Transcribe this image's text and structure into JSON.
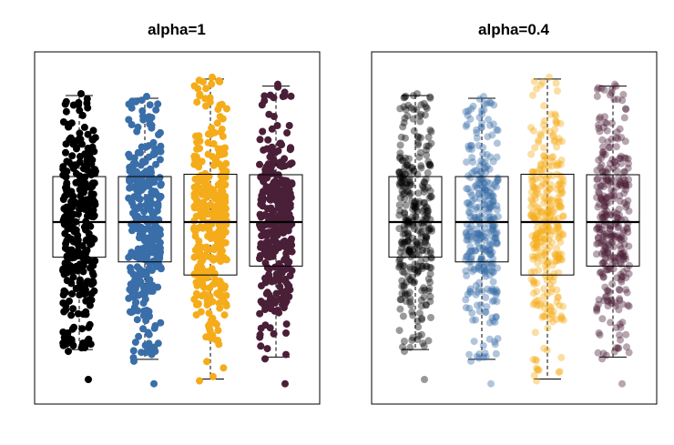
{
  "chart_data": [
    {
      "type": "box",
      "title": "alpha=1",
      "alpha": 1.0,
      "categories": [
        "",
        "",
        "",
        ""
      ],
      "series_colors": [
        "#000000",
        "#3a6ea8",
        "#f5ac1a",
        "#4a1f38"
      ],
      "box_stats": [
        {
          "whisker_low": -2.72,
          "q1": -0.75,
          "median": 0.0,
          "q3": 0.97,
          "whisker_high": 2.7,
          "outliers": [
            -3.36
          ]
        },
        {
          "whisker_low": -2.93,
          "q1": -0.85,
          "median": 0.0,
          "q3": 0.97,
          "whisker_high": 2.64,
          "outliers": [
            -3.45
          ]
        },
        {
          "whisker_low": -3.35,
          "q1": -1.13,
          "median": 0.0,
          "q3": 1.02,
          "whisker_high": 3.05,
          "outliers": []
        },
        {
          "whisker_low": -2.88,
          "q1": -0.94,
          "median": 0.0,
          "q3": 1.01,
          "whisker_high": 2.9,
          "outliers": [
            -3.45
          ]
        }
      ],
      "points_per_group": 320,
      "grid": false,
      "legend": "none"
    },
    {
      "type": "box",
      "title": "alpha=0.4",
      "alpha": 0.4,
      "categories": [
        "",
        "",
        "",
        ""
      ],
      "series_colors": [
        "#000000",
        "#3a6ea8",
        "#f5ac1a",
        "#4a1f38"
      ],
      "box_stats": [
        {
          "whisker_low": -2.72,
          "q1": -0.75,
          "median": 0.0,
          "q3": 0.97,
          "whisker_high": 2.7,
          "outliers": [
            -3.36
          ]
        },
        {
          "whisker_low": -2.93,
          "q1": -0.85,
          "median": 0.0,
          "q3": 0.97,
          "whisker_high": 2.64,
          "outliers": [
            -3.45
          ]
        },
        {
          "whisker_low": -3.35,
          "q1": -1.13,
          "median": 0.0,
          "q3": 1.02,
          "whisker_high": 3.05,
          "outliers": []
        },
        {
          "whisker_low": -2.88,
          "q1": -0.94,
          "median": 0.0,
          "q3": 1.01,
          "whisker_high": 2.9,
          "outliers": [
            -3.45
          ]
        }
      ],
      "points_per_group": 320,
      "grid": false,
      "legend": "none"
    }
  ]
}
